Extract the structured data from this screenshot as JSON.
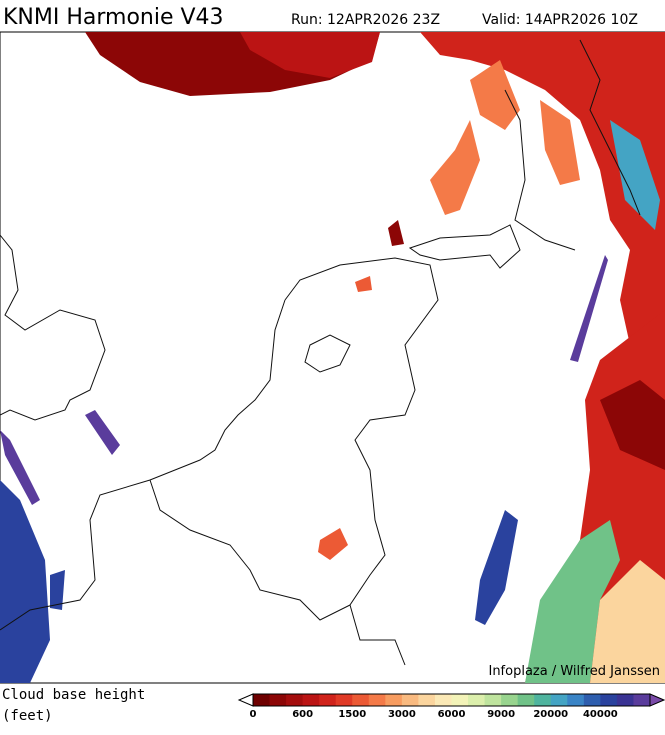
{
  "header": {
    "title": "KNMI Harmonie V43",
    "run": "Run: 12APR2026 23Z",
    "valid": "Valid: 14APR2026 10Z"
  },
  "credit": "Infoplaza / Wilfred Janssen",
  "legend": {
    "title": "Cloud base height",
    "unit": "(feet)",
    "colors": [
      "#6e0000",
      "#8c0606",
      "#a40d0d",
      "#bb1414",
      "#d0231b",
      "#e03a26",
      "#ec5a35",
      "#f47a48",
      "#f79c60",
      "#f9ba80",
      "#fbd59e",
      "#fbe9b6",
      "#f3f3b8",
      "#dcefac",
      "#bfe49e",
      "#98d48e",
      "#70c288",
      "#4fb49e",
      "#44a4c4",
      "#3a84c6",
      "#2e5eae",
      "#2a429e",
      "#3a3394",
      "#5a3c9c"
    ],
    "labels": [
      0,
      600,
      1500,
      3000,
      6000,
      9000,
      20000,
      40000
    ]
  }
}
